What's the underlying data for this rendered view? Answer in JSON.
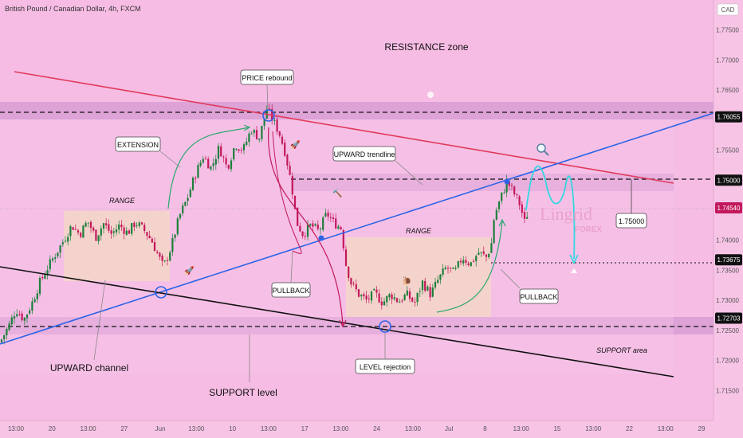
{
  "header": {
    "title": "British Pound / Canadian Dollar, 4h, FXCM",
    "currency": "CAD"
  },
  "colors": {
    "background": "#f7c4e6",
    "zone": "#d79bd2",
    "bull": "#1b7f3a",
    "bear": "#c2185b",
    "resistance_line": "#e03a5a",
    "trend_line": "#2d64e6",
    "support_line": "#111111",
    "projection": "#34d7e0"
  },
  "chart_data": {
    "type": "candlestick",
    "ylim": [
      1.71,
      1.78
    ],
    "y_ticks": [
      "1.77500",
      "1.77000",
      "1.76500",
      "1.75500",
      "1.74000",
      "1.73500",
      "1.73000",
      "1.72500",
      "1.72000",
      "1.71500"
    ],
    "x_ticks": [
      "13:00",
      "20",
      "13:00",
      "27",
      "Jun",
      "13:00",
      "10",
      "13:00",
      "17",
      "13:00",
      "24",
      "13:00",
      "Jul",
      "8",
      "13:00",
      "15",
      "13:00",
      "22",
      "13:00",
      "29"
    ],
    "price_tags": [
      "1.76055",
      "1.75000",
      "1.74540",
      "1.73675",
      "1.72703"
    ],
    "levels": [
      1.76055,
      1.75,
      1.73675,
      1.72703
    ],
    "current_price": 1.7454,
    "target_price": "1.75000",
    "watermark": "Lingrid",
    "watermark_sub": "FOREX",
    "annotations": {
      "resistance_zone": "RESISTANCE zone",
      "price_rebound": "PRICE rebound",
      "extension": "EXTENSION",
      "upward_trendline": "UPWARD trendline",
      "range_left": "RANGE",
      "range_mid": "RANGE",
      "pullback_left": "PULLBACK",
      "pullback_right": "PULLBACK",
      "upward_channel": "UPWARD channel",
      "support_level": "SUPPORT level",
      "level_rejection": "LEVEL rejection",
      "support_area": "SUPPORT area"
    },
    "price_path": [
      [
        0,
        1.723
      ],
      [
        12,
        1.726
      ],
      [
        20,
        1.7285
      ],
      [
        30,
        1.7268
      ],
      [
        40,
        1.7295
      ],
      [
        50,
        1.733
      ],
      [
        60,
        1.7355
      ],
      [
        70,
        1.7378
      ],
      [
        80,
        1.74
      ],
      [
        90,
        1.7425
      ],
      [
        100,
        1.741
      ],
      [
        110,
        1.7432
      ],
      [
        120,
        1.7405
      ],
      [
        130,
        1.7428
      ],
      [
        140,
        1.741
      ],
      [
        150,
        1.7425
      ],
      [
        160,
        1.7412
      ],
      [
        170,
        1.743
      ],
      [
        180,
        1.7418
      ],
      [
        190,
        1.74
      ],
      [
        200,
        1.737
      ],
      [
        205,
        1.7355
      ],
      [
        215,
        1.739
      ],
      [
        225,
        1.744
      ],
      [
        235,
        1.747
      ],
      [
        245,
        1.751
      ],
      [
        255,
        1.754
      ],
      [
        265,
        1.752
      ],
      [
        275,
        1.7555
      ],
      [
        285,
        1.752
      ],
      [
        295,
        1.756
      ],
      [
        305,
        1.755
      ],
      [
        315,
        1.7585
      ],
      [
        325,
        1.757
      ],
      [
        335,
        1.762
      ],
      [
        342,
        1.76
      ],
      [
        350,
        1.758
      ],
      [
        358,
        1.7545
      ],
      [
        366,
        1.749
      ],
      [
        372,
        1.743
      ],
      [
        380,
        1.741
      ],
      [
        390,
        1.7425
      ],
      [
        400,
        1.7415
      ],
      [
        410,
        1.7445
      ],
      [
        418,
        1.743
      ],
      [
        428,
        1.742
      ],
      [
        434,
        1.736
      ],
      [
        440,
        1.733
      ],
      [
        450,
        1.731
      ],
      [
        460,
        1.73
      ],
      [
        470,
        1.7312
      ],
      [
        480,
        1.7296
      ],
      [
        490,
        1.731
      ],
      [
        500,
        1.7298
      ],
      [
        510,
        1.731
      ],
      [
        520,
        1.7295
      ],
      [
        530,
        1.733
      ],
      [
        540,
        1.731
      ],
      [
        550,
        1.7335
      ],
      [
        560,
        1.7355
      ],
      [
        570,
        1.7345
      ],
      [
        580,
        1.7372
      ],
      [
        590,
        1.736
      ],
      [
        600,
        1.738
      ],
      [
        610,
        1.7372
      ],
      [
        616,
        1.739
      ],
      [
        620,
        1.744
      ],
      [
        628,
        1.747
      ],
      [
        636,
        1.7498
      ],
      [
        644,
        1.748
      ],
      [
        652,
        1.746
      ],
      [
        658,
        1.743
      ],
      [
        664,
        1.7454
      ]
    ]
  }
}
